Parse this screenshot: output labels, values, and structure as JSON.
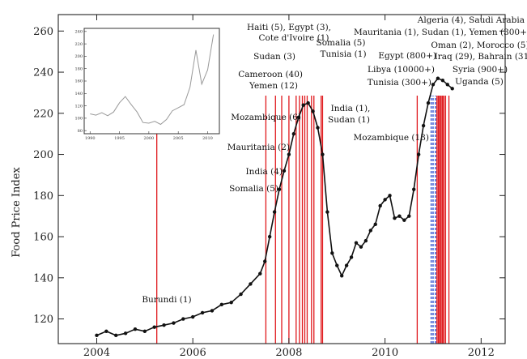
{
  "chart_data": {
    "type": "line",
    "title": "",
    "xlabel": "",
    "ylabel": "Food Price Index",
    "xlim": [
      2003.2,
      2012.5
    ],
    "ylim": [
      108,
      268
    ],
    "x_ticks": [
      "2004",
      "2006",
      "2008",
      "2010",
      "2012"
    ],
    "y_ticks": [
      "120",
      "140",
      "160",
      "180",
      "200",
      "220",
      "240",
      "260"
    ],
    "grid": false,
    "legend": "none",
    "series": [
      {
        "x": [
          2004.0,
          2004.2,
          2004.4,
          2004.6,
          2004.8,
          2005.0,
          2005.2,
          2005.4,
          2005.6,
          2005.8,
          2006.0,
          2006.2,
          2006.4,
          2006.6,
          2006.8,
          2007.0,
          2007.2,
          2007.4,
          2007.5,
          2007.6,
          2007.7,
          2007.8,
          2007.9,
          2008.0,
          2008.1,
          2008.2,
          2008.3,
          2008.4,
          2008.5,
          2008.6,
          2008.7,
          2008.8,
          2008.9,
          2009.0,
          2009.1,
          2009.2,
          2009.3,
          2009.4,
          2009.5,
          2009.6,
          2009.7,
          2009.8,
          2009.9,
          2010.0,
          2010.1,
          2010.2,
          2010.3,
          2010.4,
          2010.5,
          2010.6,
          2010.7,
          2010.8,
          2010.9,
          2011.0,
          2011.1,
          2011.2,
          2011.3,
          2011.4
        ],
        "y": [
          112,
          114,
          112,
          113,
          115,
          114,
          116,
          117,
          118,
          120,
          121,
          123,
          124,
          127,
          128,
          132,
          137,
          142,
          148,
          160,
          172,
          183,
          192,
          200,
          210,
          218,
          224,
          225,
          221,
          213,
          200,
          172,
          152,
          146,
          141,
          146,
          150,
          157,
          155,
          158,
          163,
          166,
          175,
          178,
          180,
          169,
          170,
          168,
          170,
          183,
          200,
          214,
          225,
          234,
          237,
          236,
          234,
          232
        ]
      }
    ],
    "events": [
      {
        "label": "Burundi (1)",
        "x": 2005.25
      },
      {
        "label": "Somalia (5)",
        "x": 2007.52
      },
      {
        "label": "India (4)",
        "x": 2007.72
      },
      {
        "label": "Mauritania (2)",
        "x": 2007.85
      },
      {
        "label": "Mozambique (6)",
        "x": 2008.0
      },
      {
        "label": "Cameroon (40)",
        "x": 2008.15
      },
      {
        "label": "Yemen (12)",
        "x": 2008.22
      },
      {
        "label": "Haiti (5), Egypt (3),",
        "x": 2008.28
      },
      {
        "label": "Cote d'Ivoire (1)",
        "x": 2008.33
      },
      {
        "label": "Sudan (3)",
        "x": 2008.38
      },
      {
        "label": "Somalia (5)",
        "x": 2008.47
      },
      {
        "label": "Tunisia (1)",
        "x": 2008.52
      },
      {
        "label": "India (1),",
        "x": 2008.67
      },
      {
        "label": "Sudan (1)",
        "x": 2008.7
      },
      {
        "label": "Mozambique (13)",
        "x": 2010.67
      },
      {
        "label": "Tunisia (300+)",
        "x": 2010.96
      },
      {
        "label": "Libya (10000+)",
        "x": 2011.0
      },
      {
        "label": "Egypt (800+)",
        "x": 2011.05
      },
      {
        "label": "Algeria (4), Saudi Arabia (1)",
        "x": 2011.08
      },
      {
        "label": "Mauritania (1), Sudan (1), Yemen (300+)",
        "x": 2011.12
      },
      {
        "label": "Oman (2), Morocco (5)",
        "x": 2011.17
      },
      {
        "label": "Iraq (29), Bahrain (31)",
        "x": 2011.2
      },
      {
        "label": "Syria (900+)",
        "x": 2011.26
      },
      {
        "label": "Uganda (5)",
        "x": 2011.33
      }
    ],
    "inset": {
      "x_ticks": [
        "1990",
        "1995",
        "2000",
        "2005",
        "2010"
      ],
      "y_ticks": [
        "80",
        "100",
        "120",
        "140",
        "160",
        "180",
        "200",
        "220",
        "240"
      ],
      "xlim": [
        1989,
        2012
      ],
      "ylim": [
        75,
        245
      ],
      "x": [
        1990,
        1991,
        1992,
        1993,
        1994,
        1995,
        1996,
        1997,
        1998,
        1999,
        2000,
        2001,
        2002,
        2003,
        2004,
        2005,
        2006,
        2007,
        2008,
        2009,
        2010,
        2011
      ],
      "y": [
        107,
        105,
        109,
        104,
        110,
        125,
        135,
        122,
        110,
        93,
        92,
        95,
        90,
        98,
        112,
        117,
        122,
        150,
        210,
        155,
        178,
        235
      ]
    }
  }
}
